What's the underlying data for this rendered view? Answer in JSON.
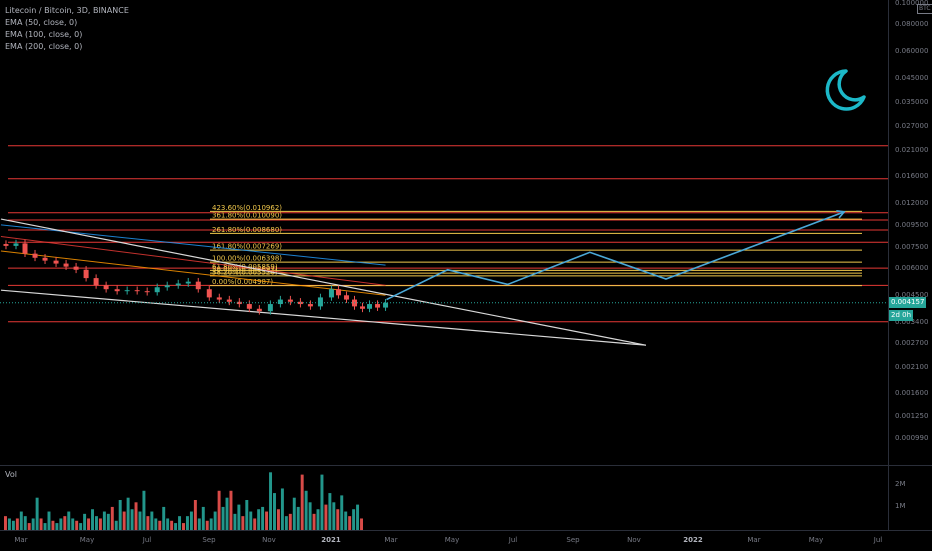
{
  "legend": {
    "title": "Litecoin / Bitcoin, 3D, BINANCE",
    "indicators": [
      "EMA (50, close, 0)",
      "EMA (100, close, 0)",
      "EMA (200, close, 0)"
    ]
  },
  "volume_label": "Vol",
  "currency_button": "BTC",
  "current_price_label": "0.004157",
  "countdown_label": "2d 0h",
  "colors": {
    "background": "#000000",
    "up": "#26a69a",
    "down": "#ef5350",
    "fib": "#f2c94c",
    "hline": "#e53935",
    "projection": "#4aa8d8",
    "trend": "#d9d9d9",
    "moon": "#1cb8c8"
  },
  "moon_icon": "crescent-moon-icon",
  "price_axis": {
    "ticks": [
      "0.100000",
      "0.080000",
      "0.060000",
      "0.045000",
      "0.035000",
      "0.027000",
      "0.021000",
      "0.016000",
      "0.012000",
      "0.009500",
      "0.007500",
      "0.006000",
      "0.004500",
      "0.003400",
      "0.002700",
      "0.002100",
      "0.001600",
      "0.001250",
      "0.000990"
    ],
    "scale": "log"
  },
  "volume_axis": {
    "ticks": [
      "2M",
      "1M"
    ]
  },
  "time_axis": {
    "labels": [
      "Mar",
      "May",
      "Jul",
      "Sep",
      "Nov",
      "2021",
      "Mar",
      "May",
      "Jul",
      "Sep",
      "Nov",
      "2022",
      "Mar",
      "May",
      "Jul"
    ],
    "bold": [
      "2021",
      "2022"
    ]
  },
  "chart_data": {
    "type": "candlestick",
    "title": "Litecoin / Bitcoin, 3D, BINANCE",
    "y_scale": "log",
    "ylim": [
      0.00085,
      0.12
    ],
    "x_range": [
      "2020-02-10",
      "2022-07-15"
    ],
    "price_series": [
      {
        "date": "2020-02-15",
        "close": 0.0076
      },
      {
        "date": "2020-02-25",
        "close": 0.0078
      },
      {
        "date": "2020-03-05",
        "close": 0.007
      },
      {
        "date": "2020-03-15",
        "close": 0.0067
      },
      {
        "date": "2020-03-25",
        "close": 0.0065
      },
      {
        "date": "2020-04-05",
        "close": 0.0063
      },
      {
        "date": "2020-04-15",
        "close": 0.0061
      },
      {
        "date": "2020-04-25",
        "close": 0.0059
      },
      {
        "date": "2020-05-05",
        "close": 0.0054
      },
      {
        "date": "2020-05-15",
        "close": 0.005
      },
      {
        "date": "2020-05-25",
        "close": 0.0048
      },
      {
        "date": "2020-06-05",
        "close": 0.0047
      },
      {
        "date": "2020-06-15",
        "close": 0.00475
      },
      {
        "date": "2020-06-25",
        "close": 0.0047
      },
      {
        "date": "2020-07-05",
        "close": 0.00465
      },
      {
        "date": "2020-07-15",
        "close": 0.0049
      },
      {
        "date": "2020-07-25",
        "close": 0.005
      },
      {
        "date": "2020-08-05",
        "close": 0.0051
      },
      {
        "date": "2020-08-15",
        "close": 0.0052
      },
      {
        "date": "2020-08-25",
        "close": 0.0048
      },
      {
        "date": "2020-09-05",
        "close": 0.0044
      },
      {
        "date": "2020-09-15",
        "close": 0.0043
      },
      {
        "date": "2020-09-25",
        "close": 0.0042
      },
      {
        "date": "2020-10-05",
        "close": 0.0041
      },
      {
        "date": "2020-10-15",
        "close": 0.0039
      },
      {
        "date": "2020-10-25",
        "close": 0.0038
      },
      {
        "date": "2020-11-05",
        "close": 0.0041
      },
      {
        "date": "2020-11-15",
        "close": 0.0043
      },
      {
        "date": "2020-11-25",
        "close": 0.0042
      },
      {
        "date": "2020-12-05",
        "close": 0.0041
      },
      {
        "date": "2020-12-15",
        "close": 0.004
      },
      {
        "date": "2020-12-25",
        "close": 0.0044
      },
      {
        "date": "2021-01-05",
        "close": 0.0048
      },
      {
        "date": "2021-01-12",
        "close": 0.0045
      },
      {
        "date": "2021-01-20",
        "close": 0.0043
      },
      {
        "date": "2021-01-28",
        "close": 0.004
      },
      {
        "date": "2021-02-05",
        "close": 0.0039
      },
      {
        "date": "2021-02-12",
        "close": 0.0041
      },
      {
        "date": "2021-02-20",
        "close": 0.00395
      },
      {
        "date": "2021-02-28",
        "close": 0.00416
      }
    ],
    "volume_series": [
      0.6,
      0.5,
      0.4,
      0.5,
      0.8,
      0.6,
      0.3,
      0.5,
      1.4,
      0.5,
      0.3,
      0.8,
      0.4,
      0.3,
      0.5,
      0.6,
      0.8,
      0.5,
      0.4,
      0.3,
      0.7,
      0.5,
      0.9,
      0.6,
      0.5,
      0.8,
      0.7,
      1.0,
      0.4,
      1.3,
      0.8,
      1.4,
      0.9,
      1.2,
      0.8,
      1.7,
      0.6,
      0.8,
      0.5,
      0.4,
      1.0,
      0.5,
      0.4,
      0.3,
      0.6,
      0.3,
      0.6,
      0.8,
      1.3,
      0.5,
      1.0,
      0.4,
      0.5,
      0.8,
      1.7,
      1.0,
      1.4,
      1.7,
      0.7,
      1.1,
      0.6,
      1.3,
      0.8,
      0.5,
      0.9,
      1.0,
      0.8,
      2.5,
      1.6,
      0.9,
      1.8,
      0.6,
      0.7,
      1.4,
      1.0,
      2.4,
      1.7,
      1.2,
      0.7,
      0.9,
      2.4,
      1.1,
      1.6,
      1.2,
      0.9,
      1.5,
      0.8,
      0.6,
      0.9,
      1.1,
      0.5
    ],
    "fib_levels": [
      {
        "label": "423.60%(0.010962)",
        "value": 0.010962
      },
      {
        "label": "361.80%(0.010090)",
        "value": 0.01009
      },
      {
        "label": "261.80%(0.008680)",
        "value": 0.00868
      },
      {
        "label": "161.80%(0.007269)",
        "value": 0.007269
      },
      {
        "label": "100.00%(0.006398)",
        "value": 0.006398
      },
      {
        "label": "61.80%(0.005859)",
        "value": 0.005859
      },
      {
        "label": "50.00%(0.005692)",
        "value": 0.005692
      },
      {
        "label": "38.20%(0.005526)",
        "value": 0.005526
      },
      {
        "label": "0.00%(0.004987)",
        "value": 0.004987
      }
    ],
    "horizontal_lines": [
      0.022,
      0.0155,
      0.0108,
      0.01,
      0.009,
      0.0079,
      0.006,
      0.005,
      0.0034
    ],
    "trendlines": [
      {
        "name": "upper",
        "from": {
          "date": "2020-02-10",
          "price": 0.0101
        },
        "to": {
          "date": "2021-11-15",
          "price": 0.00265
        }
      },
      {
        "name": "lower",
        "from": {
          "date": "2020-02-10",
          "price": 0.00475
        },
        "to": {
          "date": "2021-11-15",
          "price": 0.00265
        }
      }
    ],
    "ema_lines": [
      {
        "name": "EMA 200",
        "color": "#2196f3",
        "points": [
          {
            "date": "2020-02-10",
            "price": 0.0095
          },
          {
            "date": "2021-02-28",
            "price": 0.0062
          }
        ]
      },
      {
        "name": "EMA 100",
        "color": "#e53935",
        "points": [
          {
            "date": "2020-02-10",
            "price": 0.0084
          },
          {
            "date": "2021-02-28",
            "price": 0.005
          }
        ]
      },
      {
        "name": "EMA 50",
        "color": "#ff9800",
        "points": [
          {
            "date": "2020-02-10",
            "price": 0.0072
          },
          {
            "date": "2021-02-28",
            "price": 0.0045
          }
        ]
      }
    ],
    "projection_path": [
      {
        "date": "2021-03-01",
        "price": 0.0043
      },
      {
        "date": "2021-05-01",
        "price": 0.0059
      },
      {
        "date": "2021-06-30",
        "price": 0.00505
      },
      {
        "date": "2021-09-20",
        "price": 0.0071
      },
      {
        "date": "2021-12-05",
        "price": 0.00535
      },
      {
        "date": "2022-06-01",
        "price": 0.0109
      }
    ]
  }
}
